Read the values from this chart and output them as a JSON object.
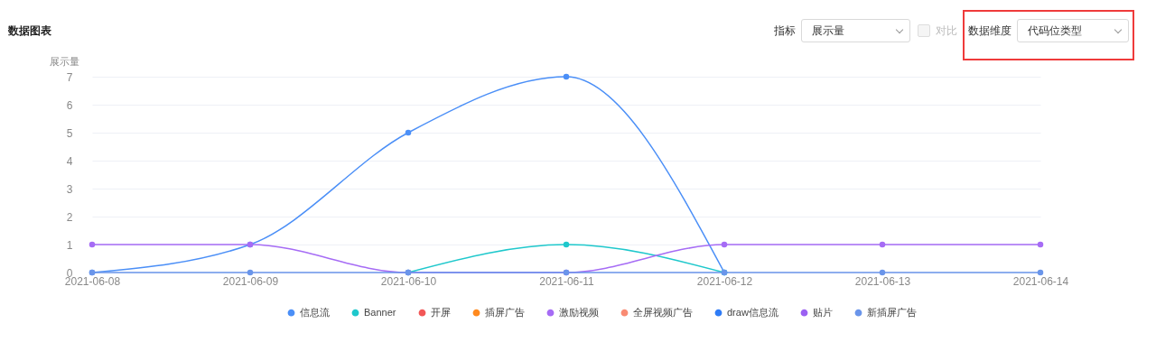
{
  "chart_data": {
    "type": "line",
    "title": "数据图表",
    "ylabel": "展示量",
    "categories": [
      "2021-06-08",
      "2021-06-09",
      "2021-06-10",
      "2021-06-11",
      "2021-06-12",
      "2021-06-13",
      "2021-06-14"
    ],
    "series": [
      {
        "name": "信息流",
        "color": "#4b8ff7",
        "values": [
          0,
          1,
          5,
          7,
          0,
          null,
          null
        ]
      },
      {
        "name": "Banner",
        "color": "#1fc8cc",
        "values": [
          null,
          null,
          0,
          1,
          0,
          null,
          null
        ]
      },
      {
        "name": "开屏",
        "color": "#f25757",
        "values": [
          null,
          null,
          null,
          null,
          null,
          null,
          null
        ]
      },
      {
        "name": "插屏广告",
        "color": "#ff8a1f",
        "values": [
          null,
          null,
          null,
          null,
          null,
          null,
          null
        ]
      },
      {
        "name": "激励视频",
        "color": "#a66cf5",
        "values": [
          1,
          1,
          0,
          0,
          1,
          1,
          1
        ]
      },
      {
        "name": "全屏视频广告",
        "color": "#f98b73",
        "values": [
          null,
          null,
          null,
          null,
          null,
          null,
          null
        ]
      },
      {
        "name": "draw信息流",
        "color": "#2f7cf6",
        "values": [
          null,
          null,
          null,
          null,
          null,
          null,
          null
        ]
      },
      {
        "name": "贴片",
        "color": "#9b61f2",
        "values": [
          null,
          null,
          null,
          null,
          null,
          null,
          null
        ]
      },
      {
        "name": "新插屏广告",
        "color": "#6a95ea",
        "values": [
          0,
          0,
          0,
          0,
          0,
          0,
          0
        ]
      }
    ],
    "ylim": [
      0,
      7
    ],
    "yticks": [
      0,
      1,
      2,
      3,
      4,
      5,
      6,
      7
    ],
    "grid": "y",
    "legend": "bottom",
    "marker": "circle",
    "line_style": "solid",
    "annotations": [
      "指标",
      "展示量",
      "对比",
      "数据维度",
      "代码位类型"
    ]
  }
}
